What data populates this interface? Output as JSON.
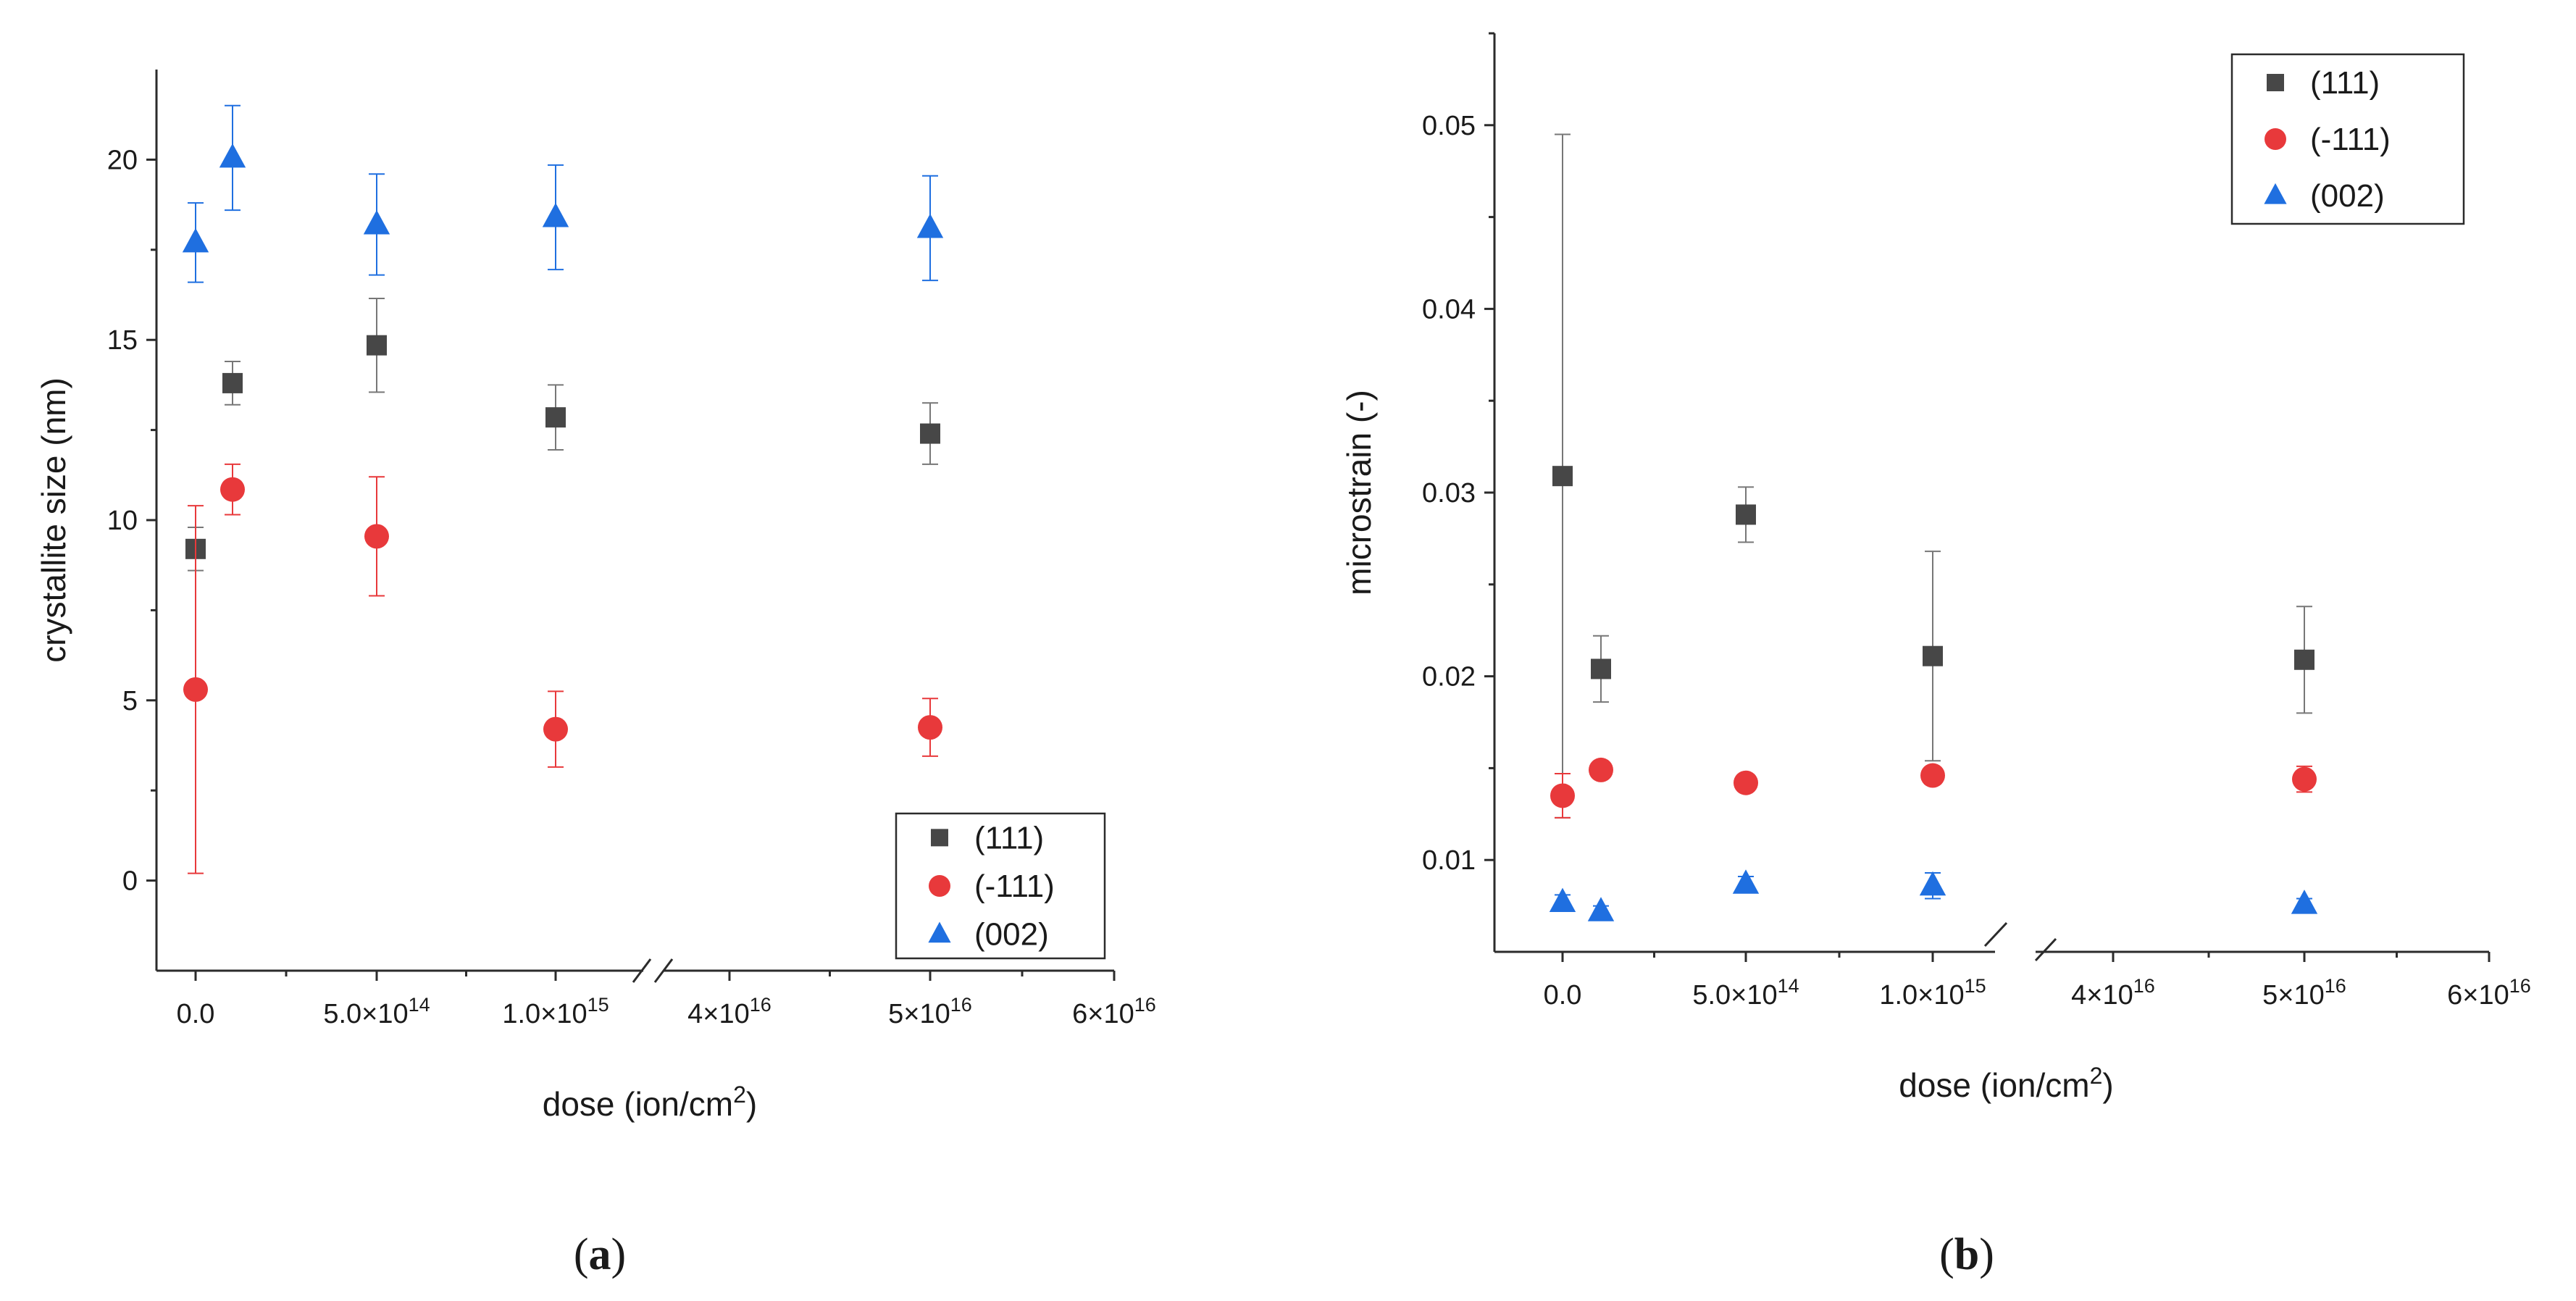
{
  "figure": {
    "panel_labels": [
      {
        "open": "(",
        "letter": "a",
        "close": ")"
      },
      {
        "open": "(",
        "letter": "b",
        "close": ")"
      }
    ]
  },
  "chart_data": [
    {
      "type": "scatter",
      "panel": "a",
      "xlabel": "dose (ion/cm",
      "xlabel_sup": "2",
      "xlabel_close": ")",
      "ylabel": "crystallite size (nm)",
      "ylim": [
        -2.5,
        22.5
      ],
      "yticks": [
        0,
        5,
        10,
        15,
        20
      ],
      "ytick_labels": [
        "0",
        "5",
        "10",
        "15",
        "20"
      ],
      "x_break": true,
      "xticks": [
        {
          "base": "0.0",
          "exp": ""
        },
        {
          "base": "5.0×10",
          "exp": "14"
        },
        {
          "base": "1.0×10",
          "exp": "15"
        },
        {
          "base": "4×10",
          "exp": "16"
        },
        {
          "base": "5×10",
          "exp": "16"
        },
        {
          "base": "6×10",
          "exp": "16"
        }
      ],
      "legend": {
        "position": "bottom-right"
      },
      "series": [
        {
          "name": "(111)",
          "marker": "square",
          "color": "#474747",
          "points": [
            {
              "dose": "0",
              "y": 9.2,
              "err": 0.6
            },
            {
              "dose": "1.0×10^14",
              "y": 13.8,
              "err": 0.6
            },
            {
              "dose": "5.0×10^14",
              "y": 14.85,
              "err": 1.3
            },
            {
              "dose": "1.0×10^15",
              "y": 12.85,
              "err": 0.9
            },
            {
              "dose": "5×10^16",
              "y": 12.4,
              "err": 0.85
            }
          ]
        },
        {
          "name": "(-111)",
          "marker": "circle",
          "color": "#e8393b",
          "points": [
            {
              "dose": "0",
              "y": 5.3,
              "err": 5.1
            },
            {
              "dose": "1.0×10^14",
              "y": 10.85,
              "err": 0.7
            },
            {
              "dose": "5.0×10^14",
              "y": 9.55,
              "err": 1.65
            },
            {
              "dose": "1.0×10^15",
              "y": 4.2,
              "err": 1.05
            },
            {
              "dose": "5×10^16",
              "y": 4.25,
              "err": 0.8
            }
          ]
        },
        {
          "name": "(002)",
          "marker": "triangle",
          "color": "#1f6fe0",
          "points": [
            {
              "dose": "0",
              "y": 17.7,
              "err": 1.1
            },
            {
              "dose": "1.0×10^14",
              "y": 20.05,
              "err": 1.45
            },
            {
              "dose": "5.0×10^14",
              "y": 18.2,
              "err": 1.4
            },
            {
              "dose": "1.0×10^15",
              "y": 18.4,
              "err": 1.45
            },
            {
              "dose": "5×10^16",
              "y": 18.1,
              "err": 1.45
            }
          ]
        }
      ]
    },
    {
      "type": "scatter",
      "panel": "b",
      "xlabel": "dose (ion/cm",
      "xlabel_sup": "2",
      "xlabel_close": ")",
      "ylabel": "microstrain (-)",
      "ylim": [
        0.005,
        0.055
      ],
      "yticks": [
        0.01,
        0.02,
        0.03,
        0.04,
        0.05
      ],
      "ytick_labels": [
        "0.01",
        "0.02",
        "0.03",
        "0.04",
        "0.05"
      ],
      "x_break": true,
      "xticks": [
        {
          "base": "0.0",
          "exp": ""
        },
        {
          "base": "5.0×10",
          "exp": "14"
        },
        {
          "base": "1.0×10",
          "exp": "15"
        },
        {
          "base": "4×10",
          "exp": "16"
        },
        {
          "base": "5×10",
          "exp": "16"
        },
        {
          "base": "6×10",
          "exp": "16"
        }
      ],
      "legend": {
        "position": "top-right"
      },
      "series": [
        {
          "name": "(111)",
          "marker": "square",
          "color": "#474747",
          "points": [
            {
              "dose": "0",
              "y": 0.0309,
              "err": 0.0186
            },
            {
              "dose": "1.0×10^14",
              "y": 0.0204,
              "err": 0.0018
            },
            {
              "dose": "5.0×10^14",
              "y": 0.0288,
              "err": 0.0015
            },
            {
              "dose": "1.0×10^15",
              "y": 0.0211,
              "err": 0.0057
            },
            {
              "dose": "5×10^16",
              "y": 0.0209,
              "err": 0.0029
            }
          ]
        },
        {
          "name": "(-111)",
          "marker": "circle",
          "color": "#e8393b",
          "points": [
            {
              "dose": "0",
              "y": 0.0135,
              "err": 0.0012
            },
            {
              "dose": "1.0×10^14",
              "y": 0.0149,
              "err": 0.0004
            },
            {
              "dose": "5.0×10^14",
              "y": 0.0142,
              "err": 0.0004
            },
            {
              "dose": "1.0×10^15",
              "y": 0.0146,
              "err": 0.0004
            },
            {
              "dose": "5×10^16",
              "y": 0.0144,
              "err": 0.0007
            }
          ]
        },
        {
          "name": "(002)",
          "marker": "triangle",
          "color": "#1f6fe0",
          "points": [
            {
              "dose": "0",
              "y": 0.0077,
              "err": 0.0004
            },
            {
              "dose": "1.0×10^14",
              "y": 0.0072,
              "err": 0.0003
            },
            {
              "dose": "5.0×10^14",
              "y": 0.0087,
              "err": 0.0004
            },
            {
              "dose": "1.0×10^15",
              "y": 0.0086,
              "err": 0.0007
            },
            {
              "dose": "5×10^16",
              "y": 0.0076,
              "err": 0.0003
            }
          ]
        }
      ]
    }
  ]
}
